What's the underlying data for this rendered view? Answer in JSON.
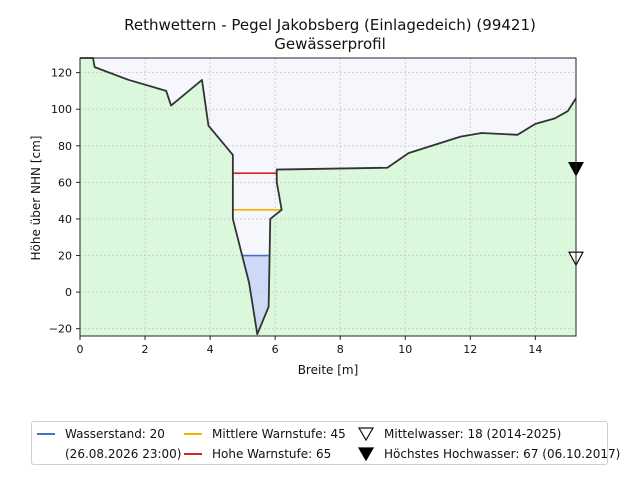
{
  "chart_data": {
    "type": "area",
    "title": "Rethwettern - Pegel Jakobsberg (Einlagedeich) (99421)",
    "subtitle": "Gewässerprofil",
    "xlabel": "Breite [m]",
    "ylabel": "Höhe über NHN [cm]",
    "xlim": [
      0,
      15.25
    ],
    "ylim": [
      -24,
      128
    ],
    "xticks": [
      0,
      2,
      4,
      6,
      8,
      10,
      12,
      14
    ],
    "yticks": [
      -20,
      0,
      20,
      40,
      60,
      80,
      100,
      120
    ],
    "grid": true,
    "legend_position": "bottom",
    "colors": {
      "ground": "#dbf7dc",
      "sky": "#f6f6fd",
      "profile_line": "#333333",
      "water": "#ccdaf8",
      "wasserstand": "#4472c4",
      "mittlere_warnstufe": "#f2b400",
      "hohe_warnstufe": "#dd2222"
    },
    "profile": [
      {
        "x": 0.0,
        "y": 128
      },
      {
        "x": 0.4,
        "y": 128
      },
      {
        "x": 0.45,
        "y": 123
      },
      {
        "x": 1.5,
        "y": 116
      },
      {
        "x": 2.65,
        "y": 110
      },
      {
        "x": 2.8,
        "y": 102
      },
      {
        "x": 3.75,
        "y": 116
      },
      {
        "x": 3.95,
        "y": 91
      },
      {
        "x": 4.7,
        "y": 75
      },
      {
        "x": 4.7,
        "y": 40
      },
      {
        "x": 5.2,
        "y": 5
      },
      {
        "x": 5.45,
        "y": -23
      },
      {
        "x": 5.8,
        "y": -8
      },
      {
        "x": 5.85,
        "y": 40
      },
      {
        "x": 6.2,
        "y": 45
      },
      {
        "x": 6.05,
        "y": 60
      },
      {
        "x": 6.05,
        "y": 67
      },
      {
        "x": 9.45,
        "y": 68
      },
      {
        "x": 10.1,
        "y": 76
      },
      {
        "x": 11.7,
        "y": 85
      },
      {
        "x": 12.35,
        "y": 87
      },
      {
        "x": 13.45,
        "y": 86
      },
      {
        "x": 14.0,
        "y": 92
      },
      {
        "x": 14.6,
        "y": 95
      },
      {
        "x": 15.0,
        "y": 99
      },
      {
        "x": 15.25,
        "y": 106
      }
    ],
    "levels": [
      {
        "key": "wasserstand",
        "value": 20
      },
      {
        "key": "mittlere_warnstufe",
        "value": 45
      },
      {
        "key": "hohe_warnstufe",
        "value": 65
      }
    ],
    "markers": [
      {
        "key": "mittelwasser",
        "value": 18,
        "filled": false
      },
      {
        "key": "hoechstes_hochwasser",
        "value": 67,
        "filled": true
      }
    ]
  },
  "legend": {
    "wasserstand": "Wasserstand: 20",
    "wasserstand_date": "(26.08.2026 23:00)",
    "mittlere_warnstufe": "Mittlere Warnstufe: 45",
    "hohe_warnstufe": "Hohe Warnstufe: 65",
    "mittelwasser": "Mittelwasser: 18 (2014-2025)",
    "hoechstes_hochwasser": "Höchstes Hochwasser: 67 (06.10.2017)"
  }
}
